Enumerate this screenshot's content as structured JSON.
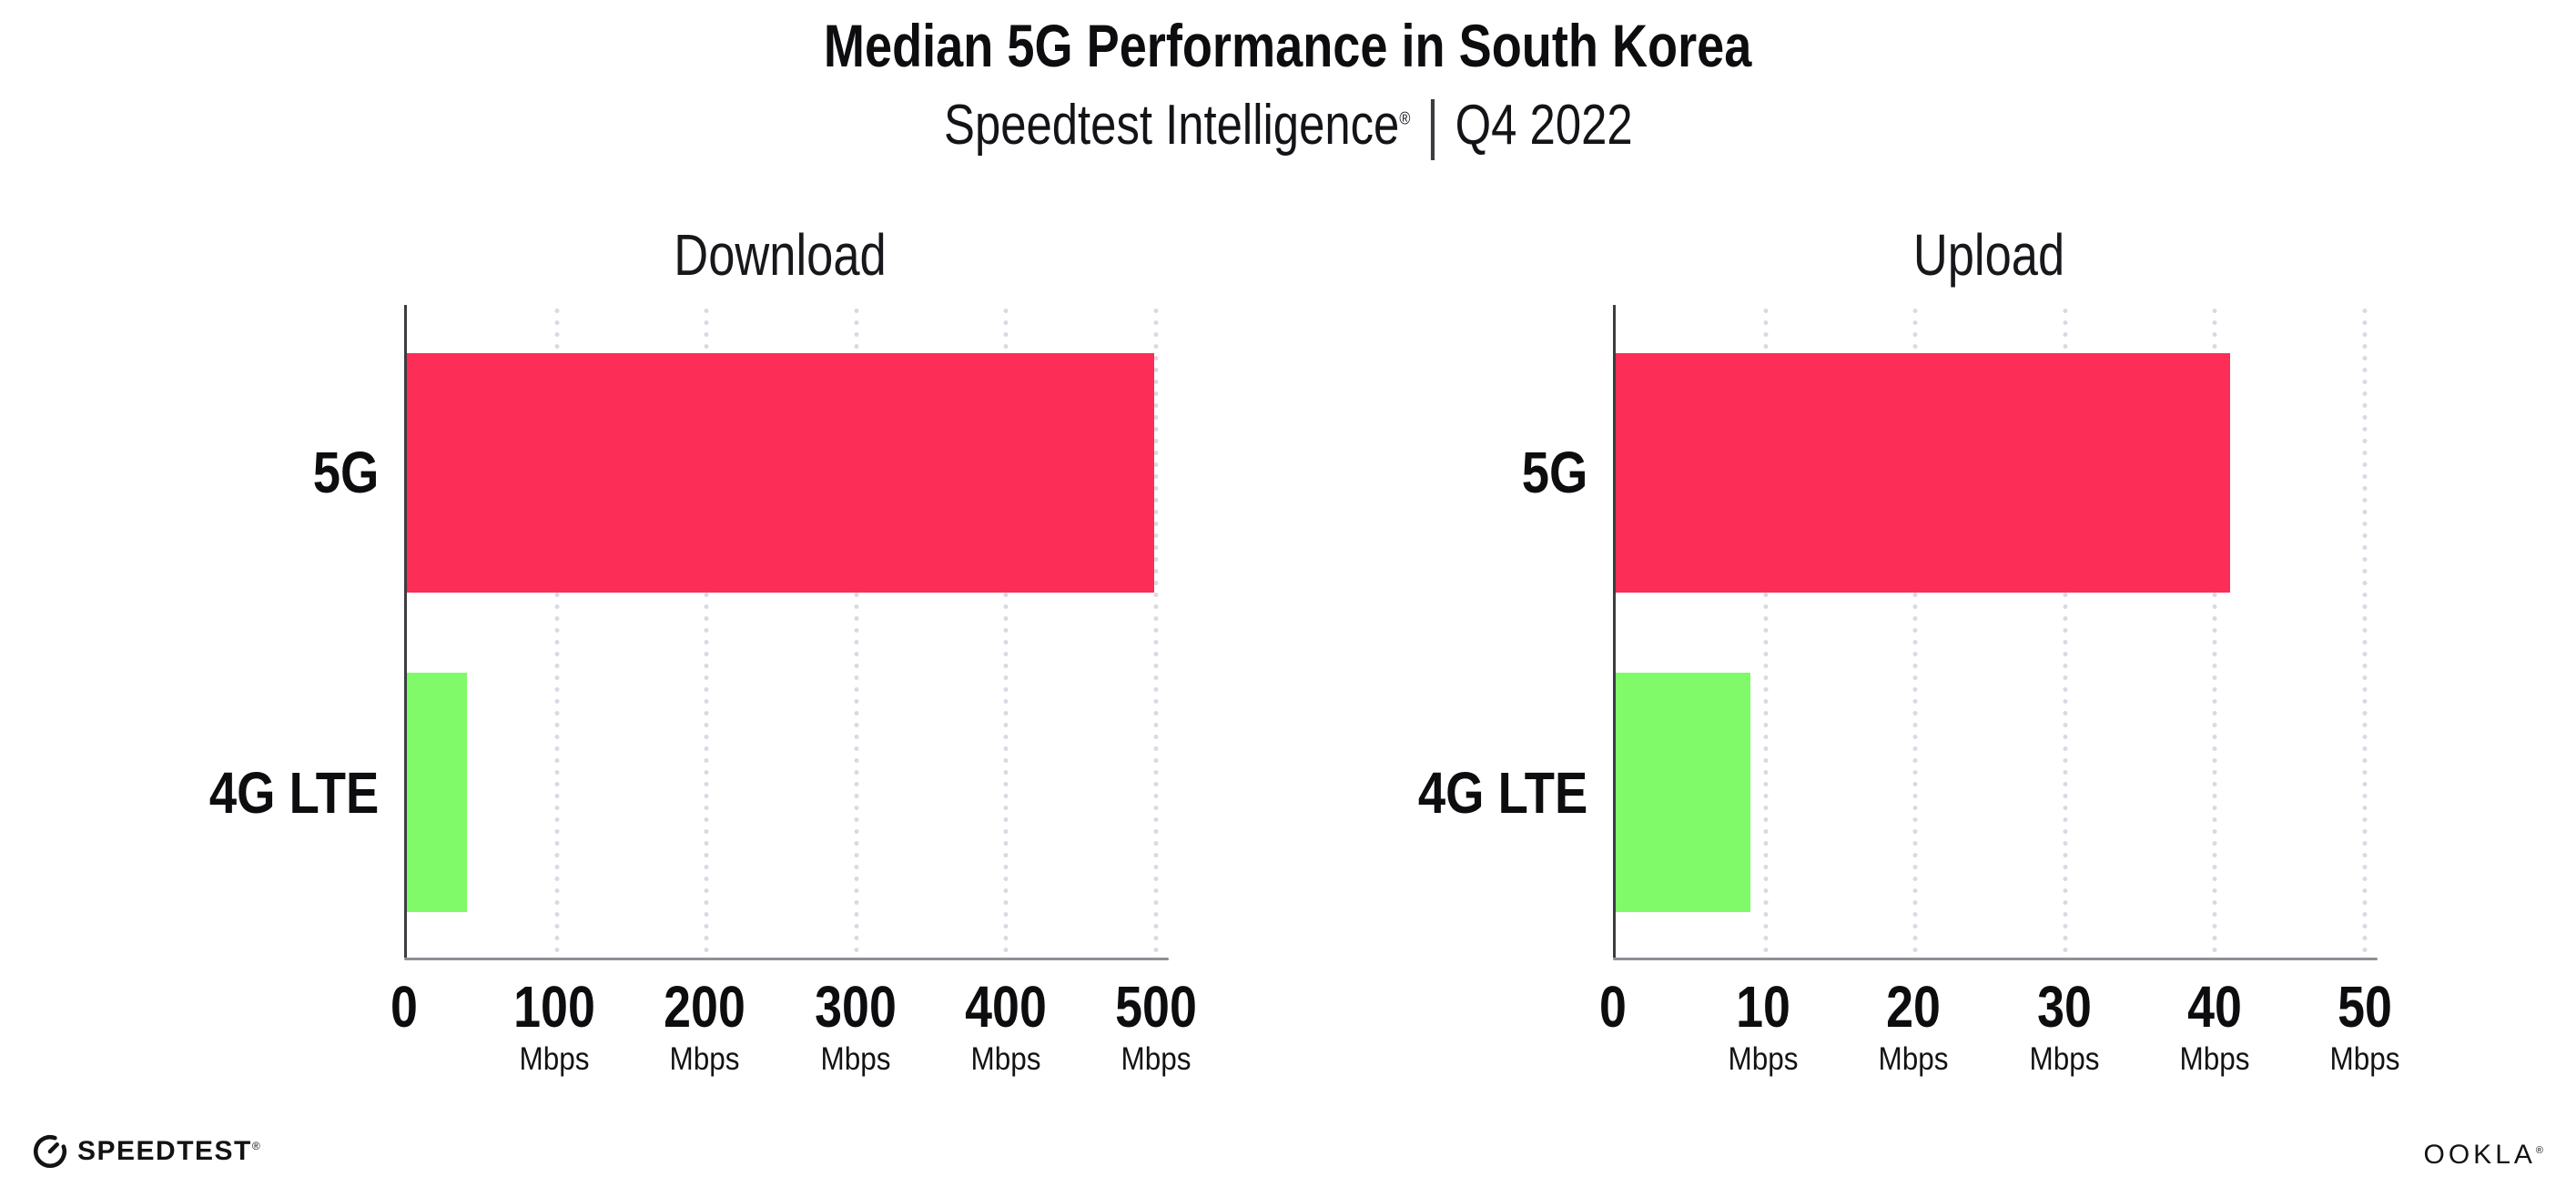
{
  "page": {
    "title": "Median 5G Performance in South Korea",
    "subtitle_brand": "Speedtest Intelligence",
    "subtitle_reg": "®",
    "subtitle_sep": "|",
    "subtitle_period": "Q4 2022"
  },
  "colors": {
    "bar_5g": "#fc2d56",
    "bar_4g": "#80fa68",
    "gridline": "#d8d9e3",
    "axis": "#8e8e96",
    "text": "#0d0d10"
  },
  "chart_data": [
    {
      "type": "bar",
      "orientation": "horizontal",
      "title": "Download",
      "categories": [
        "5G",
        "4G LTE"
      ],
      "values": [
        499,
        40
      ],
      "unit": "Mbps",
      "xlim": [
        0,
        500
      ],
      "xticks": [
        0,
        100,
        200,
        300,
        400,
        500
      ],
      "tick_unit": "Mbps",
      "grid": "vertical dotted, hide unit under 0 tick",
      "legend": "none"
    },
    {
      "type": "bar",
      "orientation": "horizontal",
      "title": "Upload",
      "categories": [
        "5G",
        "4G LTE"
      ],
      "values": [
        41,
        9
      ],
      "unit": "Mbps",
      "xlim": [
        0,
        50
      ],
      "xticks": [
        0,
        10,
        20,
        30,
        40,
        50
      ],
      "tick_unit": "Mbps",
      "grid": "vertical dotted, hide unit under 0 tick",
      "legend": "none"
    }
  ],
  "footer": {
    "speedtest_label": "SPEEDTEST",
    "speedtest_mark": "®",
    "ookla_label": "OOKLA",
    "ookla_mark": "®"
  }
}
